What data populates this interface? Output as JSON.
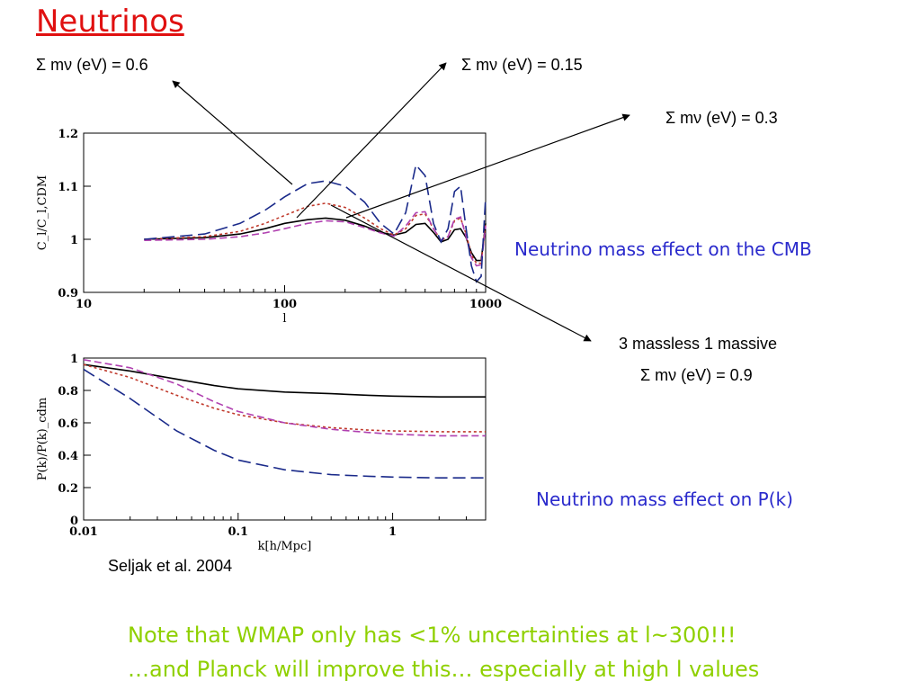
{
  "title": "Neutrinos",
  "labels": {
    "m06": "Σ mν (eV) = 0.6",
    "m015": "Σ mν (eV) = 0.15",
    "m03": "Σ mν (eV) = 0.3",
    "massive_line1": "3 massless 1 massive",
    "massive_line2": "Σ mν (eV) = 0.9"
  },
  "captions": {
    "cmb": "Neutrino mass effect on the CMB",
    "pk": "Neutrino mass effect on P(k)",
    "citation": "Seljak et al. 2004"
  },
  "notes": {
    "line1": "Note that WMAP only has <1% uncertainties at l~300!!!",
    "line2": "…and Planck will improve this… especially at high l values"
  },
  "colors": {
    "title": "#e01010",
    "caption": "#2a2acc",
    "note": "#8fd000",
    "series_0.15": "#000000",
    "series_0.3": "#c0392b",
    "series_0.6": "#b040b0",
    "series_0.9": "#1a2a8a"
  },
  "chart_data": [
    {
      "type": "line",
      "xscale": "log",
      "xlim": [
        10,
        1000
      ],
      "ylim": [
        0.9,
        1.2
      ],
      "xlabel": "l",
      "ylabel": "C_l/C_l,CDM",
      "xticks": [
        "10",
        "100",
        "1000"
      ],
      "yticks": [
        "0.9",
        "1",
        "1.1",
        "1.2"
      ],
      "series": [
        {
          "name": "Σ mν (eV) = 0.15",
          "x": [
            20,
            40,
            60,
            80,
            100,
            130,
            160,
            200,
            250,
            300,
            350,
            400,
            450,
            500,
            550,
            600,
            650,
            700,
            750,
            800,
            850,
            900,
            950,
            1000
          ],
          "y": [
            1.0,
            1.003,
            1.01,
            1.02,
            1.03,
            1.037,
            1.04,
            1.036,
            1.025,
            1.013,
            1.008,
            1.013,
            1.028,
            1.03,
            1.013,
            0.995,
            1.0,
            1.018,
            1.02,
            1.003,
            0.975,
            0.96,
            0.96,
            1.03
          ]
        },
        {
          "name": "Σ mν (eV) = 0.3",
          "x": [
            20,
            40,
            60,
            80,
            100,
            130,
            160,
            200,
            250,
            300,
            350,
            400,
            450,
            500,
            550,
            600,
            650,
            700,
            750,
            800,
            850,
            900,
            950,
            1000
          ],
          "y": [
            1.0,
            1.005,
            1.015,
            1.03,
            1.045,
            1.062,
            1.068,
            1.06,
            1.04,
            1.02,
            1.008,
            1.02,
            1.045,
            1.048,
            1.02,
            0.998,
            1.005,
            1.035,
            1.04,
            1.01,
            0.97,
            0.955,
            0.955,
            1.03
          ]
        },
        {
          "name": "Σ mν (eV) = 0.6",
          "x": [
            20,
            40,
            60,
            80,
            100,
            130,
            160,
            200,
            250,
            300,
            350,
            400,
            450,
            500,
            550,
            600,
            650,
            700,
            750,
            800,
            850,
            900,
            950,
            1000
          ],
          "y": [
            0.998,
            1.0,
            1.005,
            1.012,
            1.02,
            1.03,
            1.035,
            1.033,
            1.022,
            1.012,
            1.006,
            1.025,
            1.05,
            1.052,
            1.02,
            0.998,
            1.005,
            1.038,
            1.042,
            1.005,
            0.965,
            0.95,
            0.952,
            1.025
          ]
        },
        {
          "name": "3 massless 1 massive Σ mν (eV) = 0.9",
          "x": [
            20,
            40,
            60,
            80,
            100,
            130,
            160,
            200,
            250,
            300,
            350,
            400,
            450,
            500,
            550,
            600,
            650,
            700,
            750,
            800,
            850,
            900,
            950,
            1000
          ],
          "y": [
            1.0,
            1.01,
            1.03,
            1.055,
            1.08,
            1.105,
            1.11,
            1.1,
            1.07,
            1.03,
            1.01,
            1.05,
            1.14,
            1.12,
            1.03,
            0.995,
            1.02,
            1.09,
            1.1,
            1.02,
            0.95,
            0.92,
            0.93,
            1.08
          ]
        }
      ]
    },
    {
      "type": "line",
      "xscale": "log",
      "xlim": [
        0.01,
        4
      ],
      "ylim": [
        0,
        1
      ],
      "xlabel": "k[h/Mpc]",
      "ylabel": "P(k)/P(k)_cdm",
      "xticks": [
        "0.01",
        "0.1",
        "1"
      ],
      "yticks": [
        "0",
        "0.2",
        "0.4",
        "0.6",
        "0.8",
        "1"
      ],
      "series": [
        {
          "name": "Σ mν (eV) = 0.15",
          "x": [
            0.01,
            0.02,
            0.04,
            0.07,
            0.1,
            0.2,
            0.4,
            0.7,
            1,
            2,
            4
          ],
          "y": [
            0.96,
            0.92,
            0.87,
            0.83,
            0.81,
            0.79,
            0.78,
            0.77,
            0.765,
            0.76,
            0.76
          ]
        },
        {
          "name": "Σ mν (eV) = 0.3",
          "x": [
            0.01,
            0.02,
            0.04,
            0.07,
            0.1,
            0.2,
            0.4,
            0.7,
            1,
            2,
            4
          ],
          "y": [
            0.96,
            0.88,
            0.77,
            0.69,
            0.65,
            0.6,
            0.57,
            0.555,
            0.55,
            0.545,
            0.545
          ]
        },
        {
          "name": "Σ mν (eV) = 0.6",
          "x": [
            0.01,
            0.02,
            0.04,
            0.07,
            0.1,
            0.2,
            0.4,
            0.7,
            1,
            2,
            4
          ],
          "y": [
            0.99,
            0.94,
            0.84,
            0.73,
            0.67,
            0.6,
            0.56,
            0.54,
            0.53,
            0.52,
            0.52
          ]
        },
        {
          "name": "3 massless 1 massive Σ mν (eV) = 0.9",
          "x": [
            0.01,
            0.02,
            0.04,
            0.07,
            0.1,
            0.2,
            0.4,
            0.7,
            1,
            2,
            4
          ],
          "y": [
            0.93,
            0.75,
            0.55,
            0.43,
            0.37,
            0.31,
            0.28,
            0.27,
            0.265,
            0.26,
            0.26
          ]
        }
      ]
    }
  ]
}
